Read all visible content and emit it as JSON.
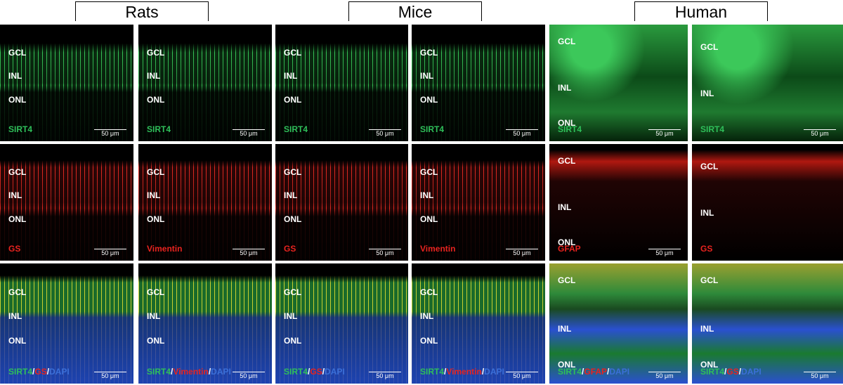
{
  "groups": [
    {
      "header": "Rats",
      "rows": [
        [
          {
            "layers": [
              "GCL",
              "INL",
              "ONL"
            ],
            "stain": [
              "SIRT4"
            ],
            "scale": "50 μm"
          },
          {
            "layers": [
              "GCL",
              "INL",
              "ONL"
            ],
            "stain": [
              "SIRT4"
            ],
            "scale": "50 μm"
          }
        ],
        [
          {
            "layers": [
              "GCL",
              "INL",
              "ONL"
            ],
            "stain": [
              "GS"
            ],
            "scale": "50 μm"
          },
          {
            "layers": [
              "GCL",
              "INL",
              "ONL"
            ],
            "stain": [
              "Vimentin"
            ],
            "scale": "50 μm"
          }
        ],
        [
          {
            "layers": [
              "GCL",
              "INL",
              "ONL"
            ],
            "stain": [
              "SIRT4",
              "/",
              "GS",
              "/",
              "DAPI"
            ],
            "scale": "50 μm"
          },
          {
            "layers": [
              "GCL",
              "INL",
              "ONL"
            ],
            "stain": [
              "SIRT4",
              "/",
              "Vimentin",
              "/",
              "DAPI"
            ],
            "scale": "50 μm"
          }
        ]
      ]
    },
    {
      "header": "Mice",
      "rows": [
        [
          {
            "layers": [
              "GCL",
              "INL",
              "ONL"
            ],
            "stain": [
              "SIRT4"
            ],
            "scale": "50 μm"
          },
          {
            "layers": [
              "GCL",
              "INL",
              "ONL"
            ],
            "stain": [
              "SIRT4"
            ],
            "scale": "50 μm"
          }
        ],
        [
          {
            "layers": [
              "GCL",
              "INL",
              "ONL"
            ],
            "stain": [
              "GS"
            ],
            "scale": "50 μm"
          },
          {
            "layers": [
              "GCL",
              "INL",
              "ONL"
            ],
            "stain": [
              "Vimentin"
            ],
            "scale": "50 μm"
          }
        ],
        [
          {
            "layers": [
              "GCL",
              "INL",
              "ONL"
            ],
            "stain": [
              "SIRT4",
              "/",
              "GS",
              "/",
              "DAPI"
            ],
            "scale": "50 μm"
          },
          {
            "layers": [
              "GCL",
              "INL",
              "ONL"
            ],
            "stain": [
              "SIRT4",
              "/",
              "Vimentin",
              "/",
              "DAPI"
            ],
            "scale": "50 μm"
          }
        ]
      ]
    },
    {
      "header": "Human",
      "rows": [
        [
          {
            "layers": [
              "GCL",
              "INL",
              "ONL"
            ],
            "stain": [
              "SIRT4"
            ],
            "scale": "50 μm"
          },
          {
            "layers": [
              "GCL",
              "INL"
            ],
            "stain": [
              "SIRT4"
            ],
            "scale": "50 μm"
          }
        ],
        [
          {
            "layers": [
              "GCL",
              "INL",
              "ONL"
            ],
            "stain": [
              "GFAP"
            ],
            "scale": "50 μm"
          },
          {
            "layers": [
              "GCL",
              "INL"
            ],
            "stain": [
              "GS"
            ]
          }
        ],
        [
          {
            "layers": [
              "GCL",
              "INL",
              "ONL"
            ],
            "stain": [
              "SIRT4",
              "/",
              "GFAP",
              "/",
              "DAPI"
            ],
            "scale": "50 μm"
          },
          {
            "layers": [
              "GCL",
              "INL",
              "ONL"
            ],
            "stain": [
              "SIRT4",
              "/",
              "GS",
              "/",
              "DAPI"
            ],
            "scale": "50 μm"
          }
        ]
      ]
    }
  ],
  "stain_colors": {
    "SIRT4": "#2fbf5a",
    "GS": "#e8231f",
    "Vimentin": "#e8231f",
    "GFAP": "#e8231f",
    "DAPI": "#3b6fd8",
    "/": "#ffffff"
  }
}
